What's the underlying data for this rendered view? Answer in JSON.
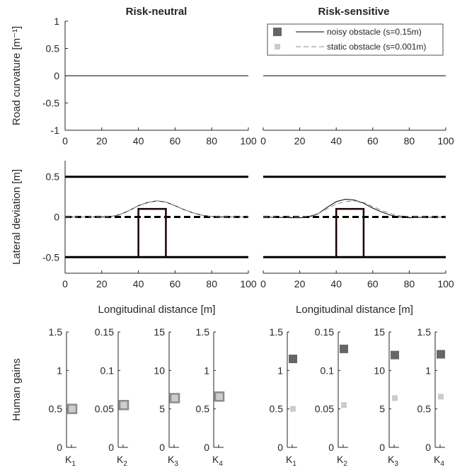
{
  "figure": {
    "panel_titles": [
      "Risk-neutral",
      "Risk-sensitive"
    ]
  },
  "chart_data": [
    {
      "type": "line",
      "panel": "Risk-neutral",
      "title": "Risk-neutral",
      "ylabel": "Road curvature [m⁻¹]",
      "xlim": [
        0,
        100
      ],
      "ylim": [
        -1,
        1
      ],
      "xticks": [
        "0",
        "20",
        "40",
        "60",
        "80",
        "100"
      ],
      "yticks": [
        "-1",
        "-0.5",
        "0",
        "0.5",
        "1"
      ],
      "series": [
        {
          "x": [
            0,
            100
          ],
          "y": [
            0,
            0
          ]
        }
      ]
    },
    {
      "type": "line",
      "panel": "Risk-sensitive",
      "title": "Risk-sensitive",
      "xlim": [
        0,
        100
      ],
      "ylim": [
        -1,
        1
      ],
      "xticks": [
        "0",
        "20",
        "40",
        "60",
        "80",
        "100"
      ],
      "legend": {
        "placement": "top-right",
        "entries": [
          "noisy obstacle (s=0.15m)",
          "static obstacle (s=0.001m)"
        ],
        "colors": [
          "#666666",
          "#cccccc"
        ]
      },
      "series": [
        {
          "x": [
            0,
            100
          ],
          "y": [
            0,
            0
          ]
        }
      ]
    },
    {
      "type": "line",
      "panel": "Risk-neutral",
      "xlabel": "Longitudinal distance [m]",
      "ylabel": "Lateral deviation [m]",
      "xlim": [
        0,
        100
      ],
      "ylim": [
        -0.7,
        0.7
      ],
      "xticks": [
        "0",
        "20",
        "40",
        "60",
        "80",
        "100"
      ],
      "yticks": [
        "-0.5",
        "0",
        "0.5"
      ],
      "lane_edges": [
        0.5,
        -0.5
      ],
      "centerline": 0,
      "obstacle": {
        "x0": 40,
        "x1": 55,
        "top": 0.1,
        "bottom": -0.5
      },
      "series": [
        {
          "x": [
            0,
            15,
            20,
            25,
            30,
            35,
            40,
            45,
            50,
            55,
            60,
            65,
            70,
            75,
            80,
            85,
            100
          ],
          "y": [
            0,
            0,
            0,
            0.005,
            0.03,
            0.08,
            0.14,
            0.18,
            0.2,
            0.185,
            0.14,
            0.09,
            0.05,
            0.02,
            0.005,
            0,
            0
          ]
        },
        {
          "x": [
            0,
            15,
            20,
            25,
            30,
            35,
            40,
            45,
            50,
            55,
            60,
            65,
            70,
            75,
            80,
            85,
            100
          ],
          "y": [
            0,
            0,
            0,
            0.005,
            0.03,
            0.08,
            0.14,
            0.18,
            0.2,
            0.185,
            0.14,
            0.09,
            0.05,
            0.02,
            0.005,
            0,
            0
          ]
        }
      ]
    },
    {
      "type": "line",
      "panel": "Risk-sensitive",
      "xlabel": "Longitudinal distance [m]",
      "xlim": [
        0,
        100
      ],
      "ylim": [
        -0.7,
        0.7
      ],
      "xticks": [
        "0",
        "20",
        "40",
        "60",
        "80",
        "100"
      ],
      "lane_edges": [
        0.5,
        -0.5
      ],
      "centerline": 0,
      "obstacle": {
        "x0": 40,
        "x1": 55,
        "top": 0.1,
        "bottom": -0.5
      },
      "series": [
        {
          "x": [
            0,
            10,
            15,
            20,
            25,
            30,
            35,
            40,
            45,
            50,
            55,
            60,
            65,
            70,
            75,
            80,
            85,
            100
          ],
          "y": [
            0,
            -0.005,
            -0.01,
            -0.01,
            0.0,
            0.04,
            0.12,
            0.19,
            0.22,
            0.21,
            0.17,
            0.11,
            0.06,
            0.02,
            0.0,
            -0.01,
            -0.005,
            0
          ]
        },
        {
          "x": [
            0,
            15,
            20,
            25,
            30,
            35,
            40,
            45,
            50,
            55,
            60,
            65,
            70,
            75,
            80,
            85,
            100
          ],
          "y": [
            0,
            0,
            0,
            0.01,
            0.04,
            0.1,
            0.16,
            0.19,
            0.2,
            0.18,
            0.13,
            0.08,
            0.04,
            0.015,
            0.003,
            0,
            0
          ]
        }
      ]
    },
    {
      "type": "scatter",
      "panel": "Risk-neutral",
      "ylabel": "Human gains",
      "subplots": [
        {
          "label": "K",
          "sub": "1",
          "ylim": [
            0,
            1.5
          ],
          "yticks": [
            "0",
            "0.5",
            "1",
            "1.5"
          ],
          "noisy": 0.5,
          "static": 0.5
        },
        {
          "label": "K",
          "sub": "2",
          "ylim": [
            0,
            0.15
          ],
          "yticks": [
            "0",
            "0.05",
            "0.1",
            "0.15"
          ],
          "noisy": 0.055,
          "static": 0.055
        },
        {
          "label": "K",
          "sub": "3",
          "ylim": [
            0,
            15
          ],
          "yticks": [
            "0",
            "5",
            "10",
            "15"
          ],
          "noisy": 6.4,
          "static": 6.4
        },
        {
          "label": "K",
          "sub": "4",
          "ylim": [
            0,
            1.5
          ],
          "yticks": [
            "0",
            "0.5",
            "1",
            "1.5"
          ],
          "noisy": 0.66,
          "static": 0.66
        }
      ]
    },
    {
      "type": "scatter",
      "panel": "Risk-sensitive",
      "subplots": [
        {
          "label": "K",
          "sub": "1",
          "ylim": [
            0,
            1.5
          ],
          "yticks": [
            "0",
            "0.5",
            "1",
            "1.5"
          ],
          "noisy": 1.15,
          "static": 0.5
        },
        {
          "label": "K",
          "sub": "2",
          "ylim": [
            0,
            0.15
          ],
          "yticks": [
            "0",
            "0.05",
            "0.1",
            "0.15"
          ],
          "noisy": 0.128,
          "static": 0.055
        },
        {
          "label": "K",
          "sub": "3",
          "ylim": [
            0,
            15
          ],
          "yticks": [
            "0",
            "5",
            "10",
            "15"
          ],
          "noisy": 12.0,
          "static": 6.4
        },
        {
          "label": "K",
          "sub": "4",
          "ylim": [
            0,
            1.5
          ],
          "yticks": [
            "0",
            "0.5",
            "1",
            "1.5"
          ],
          "noisy": 1.21,
          "static": 0.66
        }
      ]
    }
  ]
}
